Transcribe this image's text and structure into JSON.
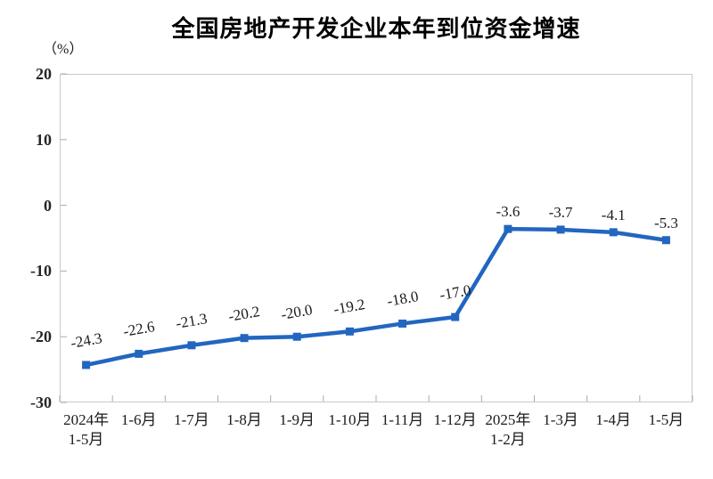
{
  "title": "全国房地产开发企业本年到位资金增速",
  "unit_label": "（%）",
  "colors": {
    "series": "#2266C0",
    "plot_border": "#C9C9C9",
    "tick": "#ABABAB",
    "axis_text": "#262626",
    "label_text": "#1A1A1A"
  },
  "chart_data": {
    "type": "line",
    "title": "全国房地产开发企业本年到位资金增速",
    "ylabel": "（%）",
    "ylim": [
      -30,
      20
    ],
    "yticks": [
      20,
      10,
      0,
      -10,
      -20,
      -30
    ],
    "grid": false,
    "legend_position": "none",
    "marker": "square",
    "categories": [
      "2024年\n1-5月",
      "1-6月",
      "1-7月",
      "1-8月",
      "1-9月",
      "1-10月",
      "1-11月",
      "1-12月",
      "2025年\n1-2月",
      "1-3月",
      "1-4月",
      "1-5月"
    ],
    "values": [
      -24.3,
      -22.6,
      -21.3,
      -20.2,
      -20.0,
      -19.2,
      -18.0,
      -17.0,
      -3.6,
      -3.7,
      -4.1,
      -5.3
    ],
    "data_labels": [
      "-24.3",
      "-22.6",
      "-21.3",
      "-20.2",
      "-20.0",
      "-19.2",
      "-18.0",
      "-17.0",
      "-3.6",
      "-3.7",
      "-4.1",
      "-5.3"
    ],
    "data_label_rotated": [
      true,
      true,
      true,
      true,
      true,
      true,
      true,
      true,
      false,
      false,
      false,
      false
    ]
  }
}
